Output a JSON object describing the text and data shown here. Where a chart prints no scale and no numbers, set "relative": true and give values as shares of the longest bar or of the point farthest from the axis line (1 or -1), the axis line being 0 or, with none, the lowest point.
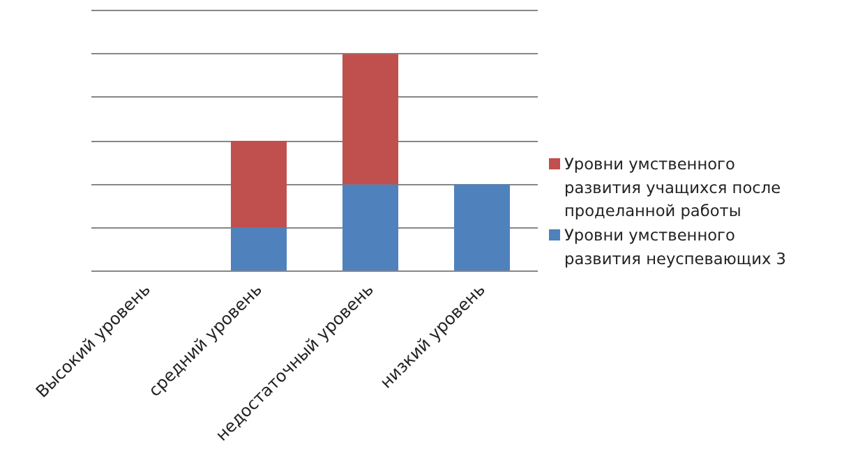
{
  "chart_data": {
    "type": "bar",
    "stacked": true,
    "relative": true,
    "grid": "y",
    "legend": "right",
    "categories": [
      "Высокий уровень",
      "средний уровень",
      "недостаточный уровень",
      "низкий уровень"
    ],
    "series": [
      {
        "name": "Уровни умственного развития неуспевающих 3",
        "color": "#4f81bd",
        "values": [
          0,
          0.2,
          0.4,
          0.4
        ]
      },
      {
        "name": "Уровни умственного развития учащихся после проделанной работы",
        "color": "#c0504d",
        "values": [
          0,
          0.4,
          0.6,
          0
        ]
      }
    ]
  }
}
